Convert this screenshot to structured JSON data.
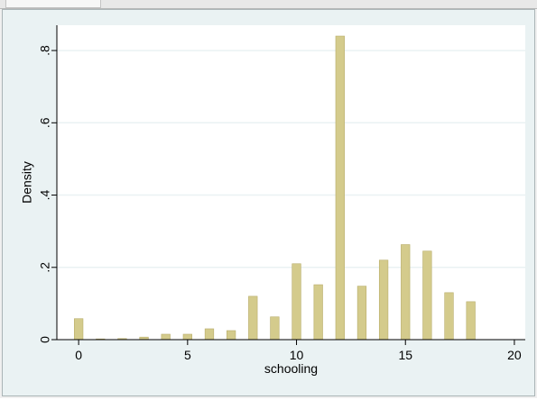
{
  "chart_data": {
    "type": "bar",
    "xlabel": "schooling",
    "ylabel": "Density",
    "xlim": [
      -1,
      20.5
    ],
    "ylim": [
      0,
      0.87
    ],
    "x_ticks": [
      {
        "value": 0,
        "label": "0"
      },
      {
        "value": 5,
        "label": "5"
      },
      {
        "value": 10,
        "label": "10"
      },
      {
        "value": 15,
        "label": "15"
      },
      {
        "value": 20,
        "label": "20"
      }
    ],
    "y_ticks": [
      {
        "value": 0,
        "label": "0"
      },
      {
        "value": 0.2,
        "label": ".2"
      },
      {
        "value": 0.4,
        "label": ".4"
      },
      {
        "value": 0.6,
        "label": ".6"
      },
      {
        "value": 0.8,
        "label": ".8"
      }
    ],
    "bar_width": 0.4,
    "x": [
      0,
      1,
      2,
      3,
      4,
      5,
      6,
      7,
      8,
      9,
      10,
      11,
      12,
      13,
      14,
      15,
      16,
      17,
      18
    ],
    "values": [
      0.058,
      0.002,
      0.003,
      0.007,
      0.015,
      0.015,
      0.03,
      0.025,
      0.12,
      0.063,
      0.21,
      0.152,
      0.84,
      0.148,
      0.22,
      0.263,
      0.245,
      0.13,
      0.105
    ],
    "grid": true,
    "colors": {
      "bar": "#d4cb8c",
      "bar_edge": "#b8ad6a",
      "plot_bg": "#ffffff",
      "outer_bg": "#eaf2f3",
      "grid": "#eaf2f3",
      "axis": "#000000"
    }
  }
}
